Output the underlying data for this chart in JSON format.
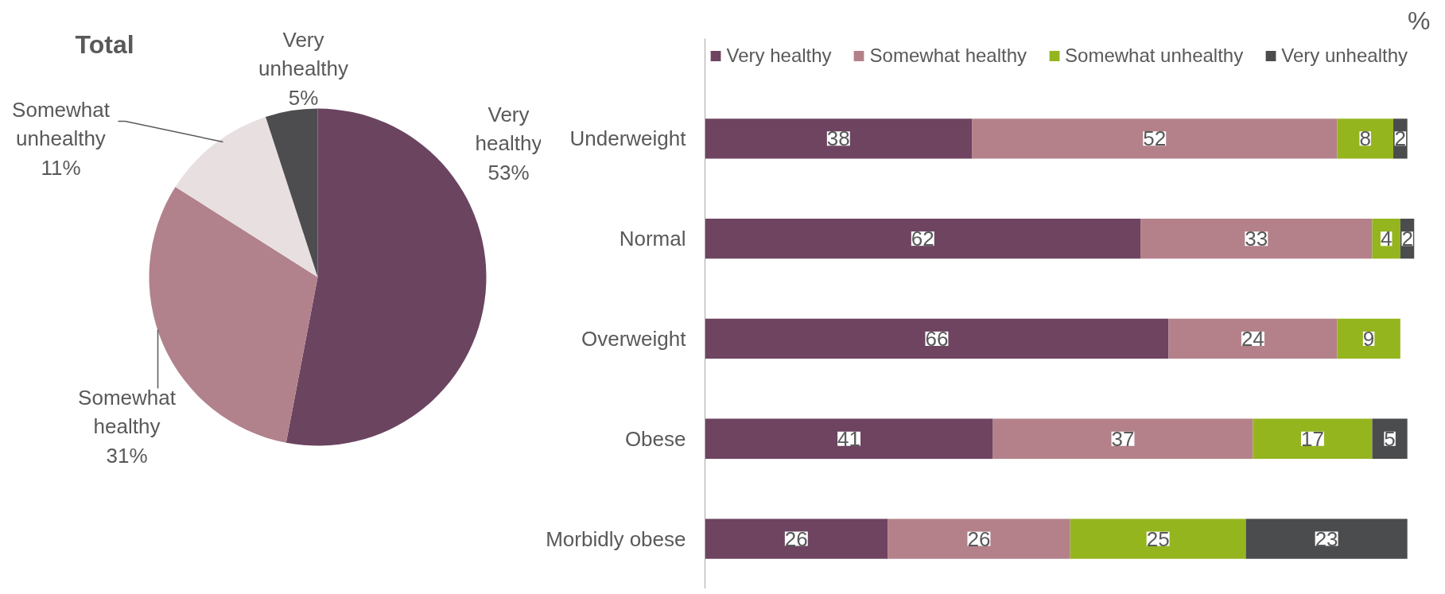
{
  "chart_data": [
    {
      "type": "pie",
      "title": "Total",
      "categories": [
        "Very healthy",
        "Somewhat healthy",
        "Somewhat unhealthy",
        "Very unhealthy"
      ],
      "values": [
        53,
        31,
        11,
        5
      ],
      "colors": [
        "#6b4460",
        "#b1828b",
        "#e8dfe1",
        "#4d4d50"
      ],
      "value_labels": [
        "53%",
        "31%",
        "11%",
        "5%"
      ]
    },
    {
      "type": "bar",
      "orientation": "horizontal",
      "stacked": true,
      "xlabel": "%",
      "categories": [
        "Underweight",
        "Normal",
        "Overweight",
        "Obese",
        "Morbidly obese"
      ],
      "series": [
        {
          "name": "Very healthy",
          "color": "#6e4461",
          "values": [
            38,
            62,
            66,
            41,
            26
          ]
        },
        {
          "name": "Somewhat healthy",
          "color": "#b4818a",
          "values": [
            52,
            33,
            24,
            37,
            26
          ]
        },
        {
          "name": "Somewhat unhealthy",
          "color": "#95b51f",
          "values": [
            8,
            4,
            9,
            17,
            25
          ]
        },
        {
          "name": "Very unhealthy",
          "color": "#4b4c4e",
          "values": [
            2,
            2,
            null,
            5,
            23
          ]
        }
      ],
      "data_labels": true,
      "legend": "top",
      "grid": false
    }
  ]
}
